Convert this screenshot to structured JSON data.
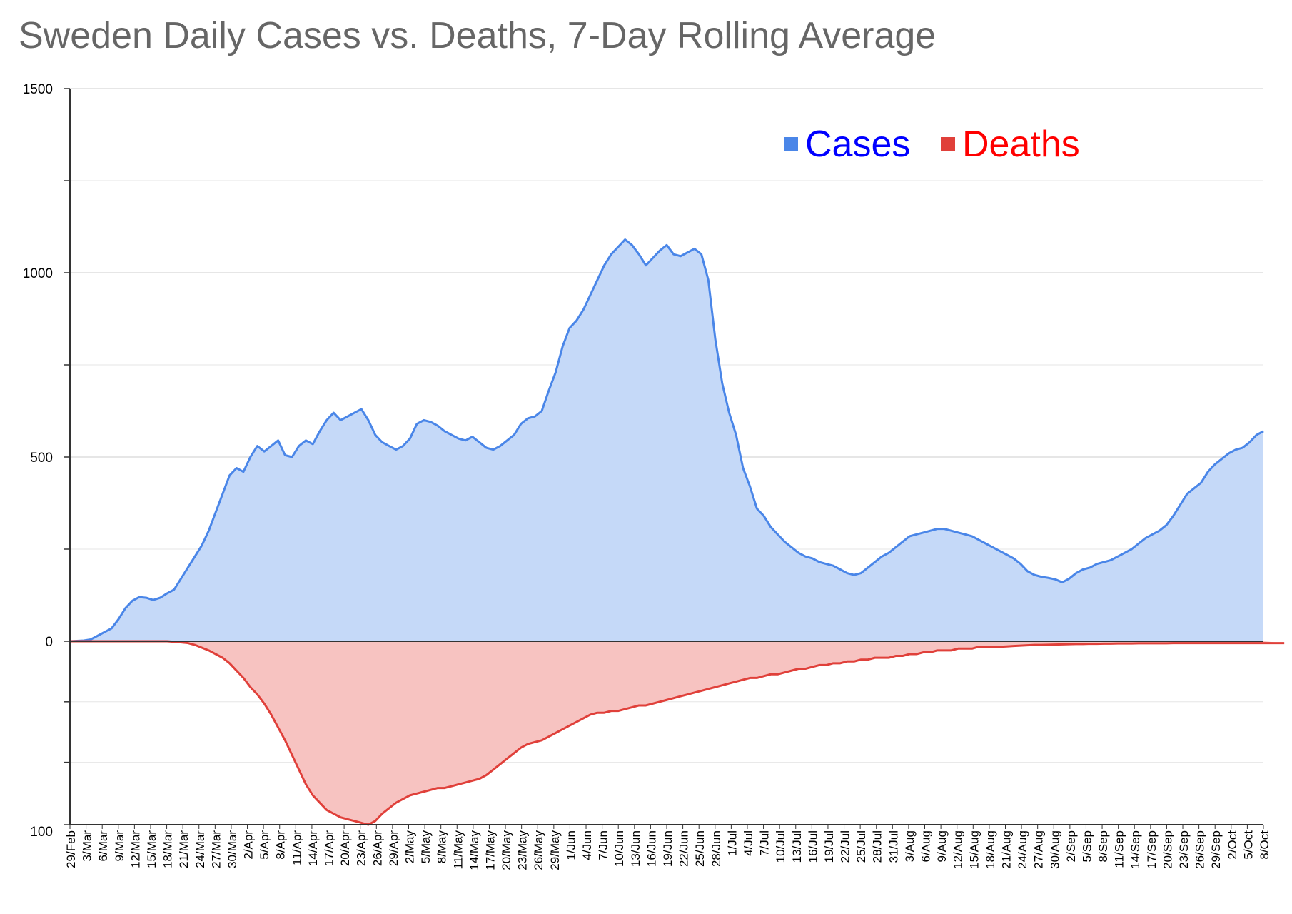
{
  "chart_data": {
    "type": "area",
    "title": "Sweden Daily Cases vs. Deaths, 7-Day Rolling Average",
    "xlabel": "",
    "ylabel": "",
    "colors": {
      "cases_line": "#4a86e8",
      "cases_fill": "#c5d9f8",
      "deaths_line": "#e0403a",
      "deaths_fill": "#f7c3c1",
      "legend_cases_text": "#0000ff",
      "legend_deaths_text": "#ff0000"
    },
    "legend": {
      "placement": "top-right",
      "entries": [
        {
          "name": "Cases",
          "color": "#4a86e8"
        },
        {
          "name": "Deaths",
          "color": "#e0403a"
        }
      ]
    },
    "y_axis_cases": {
      "min": 0,
      "max": 1500,
      "ticks": [
        "1500",
        "1000",
        "500",
        "0"
      ],
      "tick_values": [
        1500,
        1000,
        500,
        0
      ]
    },
    "y_axis_deaths": {
      "min": 0,
      "max": 100,
      "inverted": true,
      "ticks": [
        "100"
      ],
      "tick_values": [
        100
      ]
    },
    "grid": true,
    "x_tick_labels": [
      "29/Feb",
      "3/Mar",
      "6/Mar",
      "9/Mar",
      "12/Mar",
      "15/Mar",
      "18/Mar",
      "21/Mar",
      "24/Mar",
      "27/Mar",
      "30/Mar",
      "2/Apr",
      "5/Apr",
      "8/Apr",
      "11/Apr",
      "14/Apr",
      "17/Apr",
      "20/Apr",
      "23/Apr",
      "26/Apr",
      "29/Apr",
      "2/May",
      "5/May",
      "8/May",
      "11/May",
      "14/May",
      "17/May",
      "20/May",
      "23/May",
      "26/May",
      "29/May",
      "1/Jun",
      "4/Jun",
      "7/Jun",
      "10/Jun",
      "13/Jun",
      "16/Jun",
      "19/Jun",
      "22/Jun",
      "25/Jun",
      "28/Jun",
      "1/Jul",
      "4/Jul",
      "7/Jul",
      "10/Jul",
      "13/Jul",
      "16/Jul",
      "19/Jul",
      "22/Jul",
      "25/Jul",
      "28/Jul",
      "31/Jul",
      "3/Aug",
      "6/Aug",
      "9/Aug",
      "12/Aug",
      "15/Aug",
      "18/Aug",
      "21/Aug",
      "24/Aug",
      "27/Aug",
      "30/Aug",
      "2/Sep",
      "5/Sep",
      "8/Sep",
      "11/Sep",
      "14/Sep",
      "17/Sep",
      "20/Sep",
      "23/Sep",
      "26/Sep",
      "29/Sep",
      "2/Oct",
      "5/Oct",
      "8/Oct"
    ],
    "series": [
      {
        "name": "Cases",
        "values": [
          0,
          1,
          2,
          5,
          15,
          25,
          35,
          60,
          90,
          110,
          120,
          118,
          112,
          118,
          130,
          140,
          170,
          200,
          230,
          260,
          300,
          350,
          400,
          450,
          470,
          460,
          500,
          530,
          515,
          530,
          545,
          505,
          500,
          530,
          545,
          535,
          570,
          600,
          620,
          600,
          610,
          620,
          630,
          600,
          560,
          540,
          530,
          520,
          530,
          550,
          590,
          600,
          595,
          585,
          570,
          560,
          550,
          545,
          555,
          540,
          525,
          520,
          530,
          545,
          560,
          590,
          605,
          610,
          625,
          680,
          730,
          800,
          850,
          870,
          900,
          940,
          980,
          1020,
          1050,
          1070,
          1090,
          1075,
          1050,
          1020,
          1040,
          1060,
          1075,
          1050,
          1045,
          1055,
          1065,
          1050,
          980,
          820,
          700,
          620,
          560,
          470,
          420,
          360,
          340,
          310,
          290,
          270,
          255,
          240,
          230,
          225,
          215,
          210,
          205,
          195,
          185,
          180,
          185,
          200,
          215,
          230,
          240,
          255,
          270,
          285,
          290,
          295,
          300,
          305,
          305,
          300,
          295,
          290,
          285,
          275,
          265,
          255,
          245,
          235,
          225,
          210,
          190,
          180,
          175,
          172,
          168,
          160,
          170,
          185,
          195,
          200,
          210,
          215,
          220,
          230,
          240,
          250,
          265,
          280,
          290,
          300,
          315,
          340,
          370,
          400,
          415,
          430,
          460,
          480,
          495,
          510,
          520,
          525,
          540,
          560,
          570
        ]
      },
      {
        "name": "Deaths",
        "values": [
          0,
          0,
          0,
          0,
          0,
          0,
          0,
          0,
          0,
          0,
          0,
          0,
          0,
          0,
          0,
          0.3,
          0.6,
          1,
          2,
          3.5,
          5,
          7,
          9,
          12,
          16,
          20,
          25,
          29,
          34,
          40,
          47,
          54,
          62,
          70,
          78,
          84,
          88,
          92,
          94,
          96,
          97,
          98,
          99,
          100,
          98,
          94,
          91,
          88,
          86,
          84,
          83,
          82,
          81,
          80,
          80,
          79,
          78,
          77,
          76,
          75,
          73,
          70,
          67,
          64,
          61,
          58,
          56,
          55,
          54,
          52,
          50,
          48,
          46,
          44,
          42,
          40,
          39,
          39,
          38,
          38,
          37,
          36,
          35,
          35,
          34,
          33,
          32,
          31,
          30,
          29,
          28,
          27,
          26,
          25,
          24,
          23,
          22,
          21,
          20,
          20,
          19,
          18,
          18,
          17,
          16,
          15,
          15,
          14,
          13,
          13,
          12,
          12,
          11,
          11,
          10,
          10,
          9,
          9,
          9,
          8,
          8,
          7,
          7,
          6,
          6,
          5,
          5,
          5,
          4,
          4,
          4,
          3,
          3,
          3,
          3,
          2.8,
          2.6,
          2.4,
          2.2,
          2,
          2,
          1.9,
          1.8,
          1.7,
          1.6,
          1.5,
          1.5,
          1.4,
          1.4,
          1.3,
          1.3,
          1.2,
          1.2,
          1.2,
          1.1,
          1.1,
          1.1,
          1.1,
          1.1,
          1,
          1,
          1,
          1,
          1,
          1,
          1,
          1,
          1,
          1,
          1,
          1,
          1,
          1,
          1,
          1,
          1
        ]
      }
    ]
  }
}
